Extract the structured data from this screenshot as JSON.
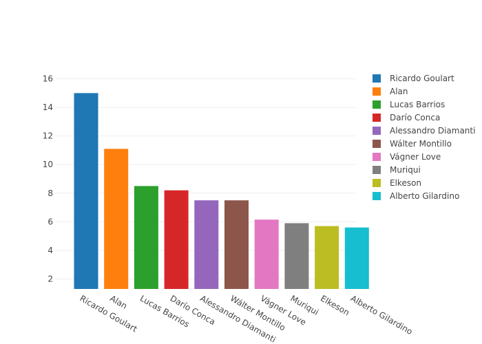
{
  "chart_data": {
    "type": "bar",
    "title": "",
    "xlabel": "",
    "ylabel": "",
    "ylim": [
      1.3,
      16.7
    ],
    "yticks": [
      2,
      4,
      6,
      8,
      10,
      12,
      14,
      16
    ],
    "categories": [
      "Ricardo Goulart",
      "Alan",
      "Lucas Barrios",
      "Darío Conca",
      "Alessandro Diamanti",
      "Wálter Montillo",
      "Vágner Love",
      "Muriqui",
      "Elkeson",
      "Alberto Gilardino"
    ],
    "values": [
      15,
      11.1,
      8.5,
      8.2,
      7.5,
      7.5,
      6.15,
      5.9,
      5.7,
      5.6
    ],
    "colors": [
      "#1f77b4",
      "#ff7f0e",
      "#2ca02c",
      "#d62728",
      "#9467bd",
      "#8c564b",
      "#e377c2",
      "#7f7f7f",
      "#bcbd22",
      "#17becf"
    ],
    "legend_position": "right",
    "grid": true
  }
}
